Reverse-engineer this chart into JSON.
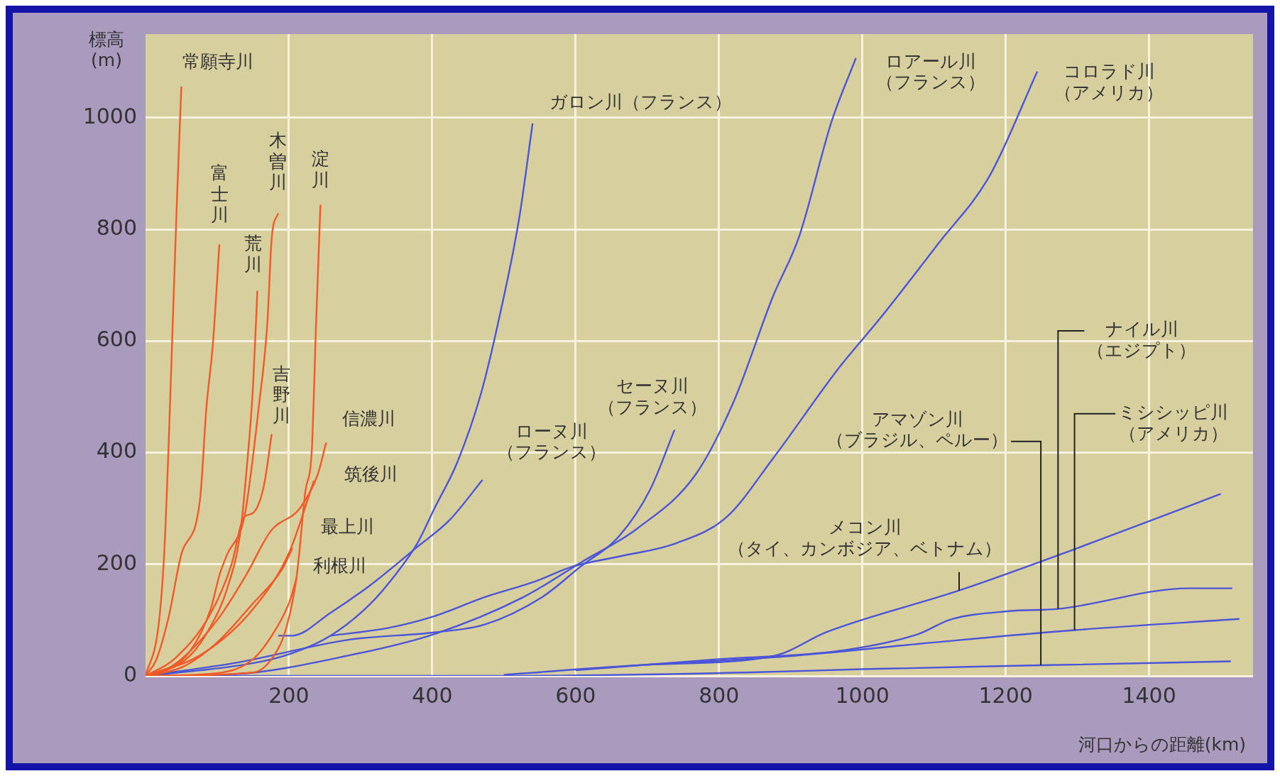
{
  "chart_data": {
    "type": "line",
    "xlabel": "河口からの距離(km)",
    "ylabel": "標高\n(m)",
    "xlim": [
      0,
      1545
    ],
    "ylim": [
      0,
      1150
    ],
    "xticks": [
      200,
      400,
      600,
      800,
      1000,
      1200,
      1400
    ],
    "yticks": [
      0,
      200,
      400,
      600,
      800,
      1000
    ],
    "grid": true,
    "marker": "none",
    "series": [
      {
        "color": "#f05a28",
        "x": [
          0,
          18,
          26,
          32,
          38,
          44,
          50
        ],
        "values": [
          0,
          89,
          218,
          406,
          633,
          859,
          1056
        ]
      },
      {
        "color": "#f05a28",
        "x": [
          0,
          15,
          32,
          50,
          76,
          85,
          94,
          103
        ],
        "values": [
          0,
          29,
          104,
          218,
          316,
          482,
          595,
          773
        ]
      },
      {
        "color": "#f05a28",
        "x": [
          0,
          21,
          62,
          91,
          114,
          132,
          141,
          150,
          156
        ],
        "values": [
          0,
          6,
          36,
          89,
          157,
          255,
          369,
          520,
          690
        ]
      },
      {
        "color": "#f05a28",
        "x": [
          0,
          21,
          62,
          91,
          103,
          114,
          138,
          158,
          170,
          176,
          185
        ],
        "values": [
          0,
          6,
          44,
          120,
          180,
          218,
          286,
          482,
          633,
          784,
          829
        ]
      },
      {
        "color": "#f05a28",
        "x": [
          0,
          150,
          179,
          197,
          211,
          223,
          232,
          238,
          244
        ],
        "values": [
          0,
          6,
          36,
          89,
          180,
          331,
          406,
          633,
          844
        ]
      },
      {
        "color": "#f05a28",
        "x": [
          0,
          40,
          90,
          120,
          137,
          150,
          165,
          176
        ],
        "values": [
          0,
          30,
          110,
          200,
          284,
          292,
          340,
          433
        ]
      },
      {
        "color": "#f05a28",
        "x": [
          0,
          40,
          100,
          140,
          175,
          215,
          240,
          252
        ],
        "values": [
          0,
          20,
          100,
          180,
          260,
          300,
          360,
          418
        ]
      },
      {
        "color": "#f05a28",
        "x": [
          0,
          80,
          150,
          200,
          235
        ],
        "values": [
          0,
          40,
          120,
          220,
          350
        ]
      },
      {
        "color": "#f05a28",
        "x": [
          0,
          50,
          100,
          150,
          190,
          205
        ],
        "values": [
          0,
          15,
          60,
          130,
          190,
          229
        ]
      },
      {
        "color": "#f05a28",
        "x": [
          0,
          100,
          150,
          180,
          200,
          211
        ],
        "values": [
          0,
          5,
          30,
          80,
          130,
          176
        ]
      },
      {
        "color": "#4a55d8",
        "x": [
          0,
          151,
          205,
          258,
          312,
          349,
          379,
          403,
          435,
          468,
          494,
          521,
          540
        ],
        "values": [
          0,
          23,
          41,
          72,
          127,
          182,
          237,
          300,
          383,
          506,
          645,
          818,
          990
        ]
      },
      {
        "color": "#4a55d8",
        "x": [
          0,
          124,
          285,
          403,
          527,
          607,
          687,
          768,
          821,
          875,
          912,
          957,
          991
        ],
        "values": [
          0,
          3,
          37,
          75,
          141,
          203,
          265,
          362,
          493,
          679,
          788,
          993,
          1107
        ]
      },
      {
        "color": "#4a55d8",
        "x": [
          258,
          339,
          403,
          473,
          543,
          596,
          661,
          741,
          811,
          875,
          968,
          1025,
          1105,
          1178,
          1244
        ],
        "values": [
          72,
          86,
          107,
          141,
          169,
          196,
          214,
          238,
          285,
          389,
          553,
          641,
          773,
          897,
          1083
        ]
      },
      {
        "color": "#4a55d8",
        "x": [
          0,
          124,
          285,
          403,
          473,
          553,
          607,
          661,
          704,
          738
        ],
        "values": [
          0,
          23,
          65,
          78,
          92,
          141,
          196,
          251,
          334,
          441
        ]
      },
      {
        "color": "#4a55d8",
        "x": [
          185,
          204,
          258,
          312,
          379,
          424,
          470
        ],
        "values": [
          72,
          72,
          113,
          161,
          231,
          279,
          351
        ]
      },
      {
        "color": "#4a55d8",
        "x": [
          500,
          700,
          877,
          951,
          1135,
          1296,
          1500
        ],
        "values": [
          2,
          20,
          36,
          79,
          153,
          227,
          326
        ]
      },
      {
        "color": "#4a55d8",
        "x": [
          0,
          500,
          836,
          1000,
          1249,
          1514
        ],
        "values": [
          0,
          0,
          6,
          12,
          19,
          26
        ]
      },
      {
        "color": "#4a55d8",
        "x": [
          600,
          800,
          968,
          1078,
          1123,
          1205,
          1273,
          1456,
          1516
        ],
        "values": [
          10,
          30,
          45,
          75,
          101,
          116,
          120,
          157,
          157
        ]
      },
      {
        "color": "#4a55d8",
        "x": [
          700,
          893,
          1100,
          1296,
          1526
        ],
        "values": [
          20,
          35,
          60,
          82,
          102
        ]
      }
    ],
    "annotations": [
      {
        "text": "常願寺川",
        "x": 50,
        "y": 1056
      },
      {
        "text": "富士川",
        "x": 103,
        "y": 773
      },
      {
        "text": "荒川",
        "x": 156,
        "y": 690
      },
      {
        "text": "木曽川",
        "x": 185,
        "y": 829
      },
      {
        "text": "淀川",
        "x": 244,
        "y": 844
      },
      {
        "text": "吉野川",
        "x": 176,
        "y": 433
      },
      {
        "text": "信濃川",
        "x": 252,
        "y": 418
      },
      {
        "text": "筑後川",
        "x": 235,
        "y": 350
      },
      {
        "text": "最上川",
        "x": 205,
        "y": 229
      },
      {
        "text": "利根川",
        "x": 211,
        "y": 176
      },
      {
        "text": "ガロン川（フランス）",
        "x": 540,
        "y": 990
      },
      {
        "text": "ロアール川（フランス）",
        "x": 991,
        "y": 1107
      },
      {
        "text": "コロラド川（アメリカ）",
        "x": 1244,
        "y": 1083
      },
      {
        "text": "セーヌ川（フランス）",
        "x": 738,
        "y": 441
      },
      {
        "text": "ローヌ川（フランス）",
        "x": 470,
        "y": 351
      },
      {
        "text": "メコン川（タイ、カンボジア、ベトナム）",
        "x": 1135,
        "y": 153
      },
      {
        "text": "アマゾン川（ブラジル、ペルー）",
        "x": 1249,
        "y": 19
      },
      {
        "text": "ナイル川（エジプト）",
        "x": 1273,
        "y": 120
      },
      {
        "text": "ミシシッピ川（アメリカ）",
        "x": 1296,
        "y": 82
      }
    ]
  }
}
